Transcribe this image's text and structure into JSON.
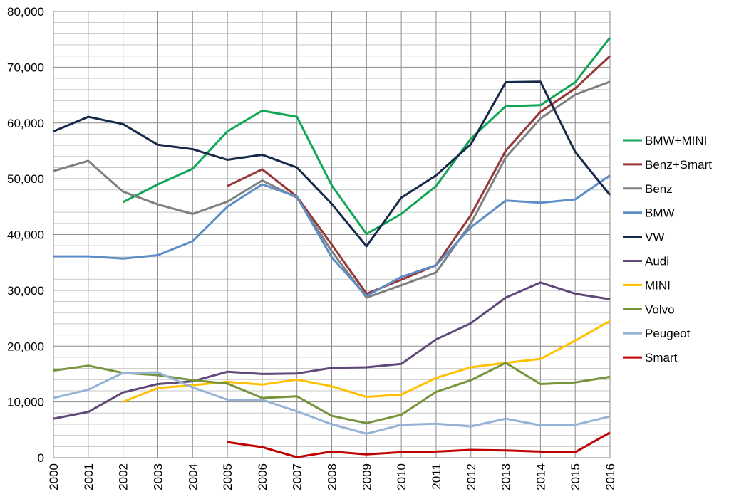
{
  "chart_data": {
    "type": "line",
    "title": "",
    "xlabel": "",
    "ylabel": "",
    "x": [
      "2000",
      "2001",
      "2002",
      "2003",
      "2004",
      "2005",
      "2006",
      "2007",
      "2008",
      "2009",
      "2010",
      "2011",
      "2012",
      "2013",
      "2014",
      "2015",
      "2016"
    ],
    "ylim": [
      0,
      80000
    ],
    "y_ticks": [
      0,
      10000,
      20000,
      30000,
      40000,
      50000,
      60000,
      70000,
      80000
    ],
    "y_tick_labels": [
      "0",
      "10,000",
      "20,000",
      "30,000",
      "40,000",
      "50,000",
      "60,000",
      "70,000",
      "80,000"
    ],
    "grid": true,
    "legend_position": "right",
    "series": [
      {
        "name": "BMW+MINI",
        "color": "#10a653",
        "values": [
          null,
          null,
          45800,
          49000,
          51800,
          58500,
          62200,
          61100,
          48800,
          40100,
          43700,
          48700,
          57200,
          63000,
          63200,
          67300,
          75300
        ]
      },
      {
        "name": "Benz+Smart",
        "color": "#953735",
        "values": [
          null,
          null,
          null,
          null,
          null,
          48700,
          51700,
          46800,
          38200,
          29400,
          31900,
          34500,
          43500,
          55000,
          62000,
          66200,
          72000
        ]
      },
      {
        "name": "Benz",
        "color": "#808080",
        "values": [
          51400,
          53200,
          47700,
          45400,
          43700,
          45900,
          49700,
          46600,
          37000,
          28700,
          30900,
          33200,
          42000,
          53800,
          60800,
          65100,
          67400
        ]
      },
      {
        "name": "BMW",
        "color": "#5d8ec7",
        "values": [
          36100,
          36100,
          35700,
          36300,
          38800,
          45000,
          49000,
          46800,
          35900,
          29000,
          32400,
          34500,
          41300,
          46100,
          45700,
          46300,
          50600
        ]
      },
      {
        "name": "VW",
        "color": "#17294a",
        "values": [
          58500,
          61100,
          59800,
          56100,
          55300,
          53400,
          54300,
          52000,
          45500,
          37900,
          46600,
          50600,
          56200,
          67300,
          67400,
          54800,
          47100
        ]
      },
      {
        "name": "Audi",
        "color": "#60497a",
        "values": [
          7000,
          8200,
          11700,
          13200,
          13700,
          15400,
          15000,
          15100,
          16100,
          16200,
          16800,
          21200,
          24100,
          28700,
          31400,
          29400,
          28400
        ]
      },
      {
        "name": "MINI",
        "color": "#ffc000",
        "values": [
          null,
          null,
          10000,
          12500,
          13000,
          13600,
          13100,
          14000,
          12800,
          10900,
          11300,
          14300,
          16200,
          17000,
          17700,
          21000,
          24500
        ]
      },
      {
        "name": "Volvo",
        "color": "#77933c",
        "values": [
          15600,
          16500,
          15200,
          14800,
          13900,
          13300,
          10700,
          11000,
          7500,
          6200,
          7700,
          11800,
          13900,
          17000,
          13200,
          13500,
          14500
        ]
      },
      {
        "name": "Peugeot",
        "color": "#95b3d7",
        "values": [
          10700,
          12200,
          15200,
          15300,
          12600,
          10400,
          10400,
          8300,
          6000,
          4300,
          5900,
          6100,
          5600,
          7000,
          5800,
          5900,
          7400
        ]
      },
      {
        "name": "Smart",
        "color": "#c00000",
        "values": [
          null,
          null,
          null,
          null,
          null,
          2800,
          1900,
          100,
          1100,
          600,
          1000,
          1100,
          1400,
          1300,
          1100,
          1000,
          4500
        ]
      }
    ]
  }
}
